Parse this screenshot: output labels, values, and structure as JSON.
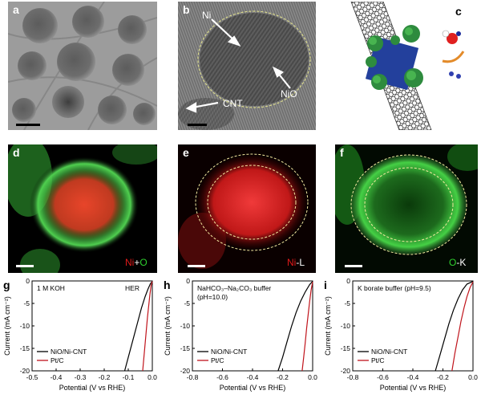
{
  "panels": {
    "a": {
      "label": "a"
    },
    "b": {
      "label": "b",
      "ni_label": "Ni",
      "nio_label": "NiO",
      "cnt_label": "CNT"
    },
    "c": {
      "label": "c"
    },
    "d": {
      "label": "d",
      "map_ni": "Ni",
      "map_plus": "+",
      "map_o": "O"
    },
    "e": {
      "label": "e",
      "map_ni": "Ni",
      "map_suffix": "-L"
    },
    "f": {
      "label": "f",
      "map_o": "O",
      "map_suffix": "-K"
    }
  },
  "colors": {
    "ni_map": "#e01a1a",
    "o_map": "#2fd02f",
    "nio_curve": "#000000",
    "ptc_curve": "#c0141c"
  },
  "chart_data": [
    {
      "panel": "g",
      "type": "line",
      "annotation": "1 M KOH",
      "annotation_right": "HER",
      "xlabel": "Potential (V vs RHE)",
      "ylabel": "Current (mA cm⁻²)",
      "xlim": [
        -0.5,
        0.0
      ],
      "ylim": [
        -20,
        0
      ],
      "xticks": [
        "-0.5",
        "-0.4",
        "-0.3",
        "-0.2",
        "-0.1",
        "0.0"
      ],
      "xtick_values": [
        -0.5,
        -0.4,
        -0.3,
        -0.2,
        -0.1,
        0.0
      ],
      "yticks": [
        "0",
        "-5",
        "-10",
        "-15",
        "-20"
      ],
      "ytick_values": [
        0,
        -5,
        -10,
        -15,
        -20
      ],
      "legend": [
        "NiO/Ni-CNT",
        "Pt/C"
      ],
      "series": [
        {
          "name": "NiO/Ni-CNT",
          "x": [
            -0.115,
            -0.1,
            -0.08,
            -0.06,
            -0.045,
            -0.03,
            -0.018,
            -0.008,
            0.0
          ],
          "y": [
            -20,
            -17,
            -13,
            -9,
            -6,
            -3.5,
            -1.8,
            -0.6,
            -0.1
          ]
        },
        {
          "name": "Pt/C",
          "x": [
            -0.04,
            -0.035,
            -0.03,
            -0.025,
            -0.02,
            -0.015,
            -0.01,
            -0.005,
            0.0
          ],
          "y": [
            -20,
            -17,
            -14,
            -11,
            -8,
            -5.5,
            -3,
            -1,
            -0.1
          ]
        }
      ]
    },
    {
      "panel": "h",
      "type": "line",
      "annotation": "NaHCO₃–Na₂CO₃ buffer",
      "annotation2": "(pH=10.0)",
      "xlabel": "Potential (V vs RHE)",
      "ylabel": "Current (mA cm⁻²)",
      "xlim": [
        -0.8,
        0.0
      ],
      "ylim": [
        -20,
        0
      ],
      "xticks": [
        "-0.8",
        "-0.6",
        "-0.4",
        "-0.2",
        "0.0"
      ],
      "xtick_values": [
        -0.8,
        -0.6,
        -0.4,
        -0.2,
        0.0
      ],
      "yticks": [
        "0",
        "-5",
        "-10",
        "-15",
        "-20"
      ],
      "ytick_values": [
        0,
        -5,
        -10,
        -15,
        -20
      ],
      "legend": [
        "NiO/Ni-CNT",
        "Pt/C"
      ],
      "series": [
        {
          "name": "NiO/Ni-CNT",
          "x": [
            -0.23,
            -0.2,
            -0.17,
            -0.14,
            -0.11,
            -0.08,
            -0.05,
            -0.02,
            0.0
          ],
          "y": [
            -20,
            -17,
            -13.5,
            -10,
            -7,
            -4.5,
            -2.5,
            -0.8,
            -0.1
          ]
        },
        {
          "name": "Pt/C",
          "x": [
            -0.07,
            -0.06,
            -0.05,
            -0.04,
            -0.03,
            -0.02,
            -0.01,
            0.0
          ],
          "y": [
            -20,
            -17,
            -14,
            -10.5,
            -7.5,
            -4.5,
            -2,
            -0.2
          ]
        }
      ]
    },
    {
      "panel": "i",
      "type": "line",
      "annotation": "K borate buffer (pH=9.5)",
      "xlabel": "Potential (V vs RHE)",
      "ylabel": "Current (mA cm⁻²)",
      "xlim": [
        -0.8,
        0.0
      ],
      "ylim": [
        -20,
        0
      ],
      "xticks": [
        "-0.8",
        "-0.6",
        "-0.4",
        "-0.2",
        "0.0"
      ],
      "xtick_values": [
        -0.8,
        -0.6,
        -0.4,
        -0.2,
        0.0
      ],
      "yticks": [
        "0",
        "-5",
        "-10",
        "-15",
        "-20"
      ],
      "ytick_values": [
        0,
        -5,
        -10,
        -15,
        -20
      ],
      "legend": [
        "NiO/Ni-CNT",
        "Pt/C"
      ],
      "series": [
        {
          "name": "NiO/Ni-CNT",
          "x": [
            -0.25,
            -0.22,
            -0.19,
            -0.16,
            -0.13,
            -0.1,
            -0.07,
            -0.04,
            0.0
          ],
          "y": [
            -20,
            -16.5,
            -13,
            -9.5,
            -6.5,
            -4,
            -2,
            -0.7,
            -0.1
          ]
        },
        {
          "name": "Pt/C",
          "x": [
            -0.14,
            -0.12,
            -0.1,
            -0.08,
            -0.06,
            -0.04,
            -0.02,
            0.0
          ],
          "y": [
            -20,
            -16,
            -12.5,
            -9,
            -6,
            -3.5,
            -1.5,
            -0.2
          ]
        }
      ]
    }
  ]
}
